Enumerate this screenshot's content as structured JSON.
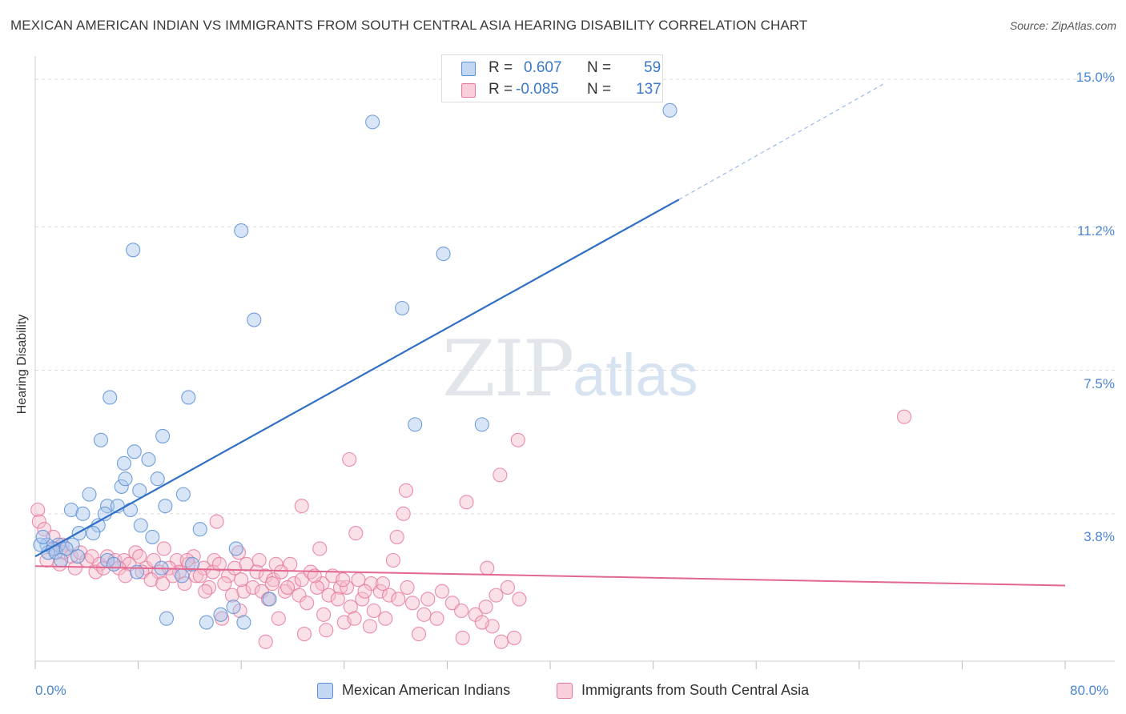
{
  "chart_data": {
    "type": "scatter",
    "title": "MEXICAN AMERICAN INDIAN VS IMMIGRANTS FROM SOUTH CENTRAL ASIA HEARING DISABILITY CORRELATION CHART",
    "source": "Source: ZipAtlas.com",
    "ylabel": "Hearing Disability",
    "xlabel": "",
    "xlim": [
      0,
      80
    ],
    "ylim": [
      0,
      15.6
    ],
    "x_tick_labels": [
      "0.0%",
      "80.0%"
    ],
    "y_ticks": [
      {
        "value": 3.8,
        "label": "3.8%"
      },
      {
        "value": 7.5,
        "label": "7.5%"
      },
      {
        "value": 11.2,
        "label": "11.2%"
      },
      {
        "value": 15.0,
        "label": "15.0%"
      }
    ],
    "watermark": {
      "zip": "ZIP",
      "atlas": "atlas"
    },
    "stats": [
      {
        "r_label": "R =",
        "r_value": "0.607",
        "n_label": "N =",
        "n_value": "59"
      },
      {
        "r_label": "R =",
        "r_value": "-0.085",
        "n_label": "N =",
        "n_value": "137"
      }
    ],
    "series": [
      {
        "name": "Mexican American Indians",
        "color": "#5b8fd6",
        "fill": "#a9c5ec",
        "trend": {
          "x0": 0,
          "y0": 2.7,
          "x1": 50,
          "y1": 11.9,
          "dash_x1": 66,
          "dash_y1": 14.9
        },
        "points": [
          [
            26.2,
            13.9
          ],
          [
            49.3,
            14.2
          ],
          [
            7.6,
            10.6
          ],
          [
            16.0,
            11.1
          ],
          [
            31.7,
            10.5
          ],
          [
            17.0,
            8.8
          ],
          [
            28.5,
            9.1
          ],
          [
            5.8,
            6.8
          ],
          [
            11.9,
            6.8
          ],
          [
            29.5,
            6.1
          ],
          [
            34.7,
            6.1
          ],
          [
            5.1,
            5.7
          ],
          [
            9.9,
            5.8
          ],
          [
            7.7,
            5.4
          ],
          [
            6.9,
            5.1
          ],
          [
            8.8,
            5.2
          ],
          [
            6.7,
            4.5
          ],
          [
            9.5,
            4.7
          ],
          [
            7.0,
            4.7
          ],
          [
            8.1,
            4.4
          ],
          [
            11.5,
            4.3
          ],
          [
            4.2,
            4.3
          ],
          [
            5.6,
            4.0
          ],
          [
            7.4,
            3.9
          ],
          [
            6.4,
            4.0
          ],
          [
            10.1,
            4.0
          ],
          [
            2.8,
            3.9
          ],
          [
            3.7,
            3.8
          ],
          [
            5.4,
            3.8
          ],
          [
            8.2,
            3.5
          ],
          [
            4.9,
            3.5
          ],
          [
            3.4,
            3.3
          ],
          [
            4.5,
            3.3
          ],
          [
            9.1,
            3.2
          ],
          [
            12.8,
            3.4
          ],
          [
            1.8,
            3.0
          ],
          [
            2.9,
            3.0
          ],
          [
            1.4,
            2.9
          ],
          [
            0.9,
            3.0
          ],
          [
            1.0,
            2.8
          ],
          [
            0.4,
            3.0
          ],
          [
            0.6,
            3.2
          ],
          [
            1.6,
            2.8
          ],
          [
            2.4,
            2.9
          ],
          [
            3.3,
            2.7
          ],
          [
            2.0,
            2.6
          ],
          [
            15.6,
            2.9
          ],
          [
            5.6,
            2.6
          ],
          [
            6.1,
            2.5
          ],
          [
            9.8,
            2.4
          ],
          [
            11.4,
            2.2
          ],
          [
            12.2,
            2.5
          ],
          [
            7.9,
            2.3
          ],
          [
            15.4,
            1.4
          ],
          [
            18.2,
            1.6
          ],
          [
            10.2,
            1.1
          ],
          [
            13.3,
            1.0
          ],
          [
            14.4,
            1.2
          ],
          [
            16.2,
            1.0
          ]
        ]
      },
      {
        "name": "Immigrants from South Central Asia",
        "color": "#e8799d",
        "fill": "#f5bccd",
        "trend": {
          "x0": 0,
          "y0": 2.45,
          "x1": 80,
          "y1": 1.95
        },
        "points": [
          [
            67.5,
            6.3
          ],
          [
            37.5,
            5.7
          ],
          [
            24.4,
            5.2
          ],
          [
            36.1,
            4.8
          ],
          [
            28.8,
            4.4
          ],
          [
            33.5,
            4.1
          ],
          [
            20.7,
            4.0
          ],
          [
            28.6,
            3.8
          ],
          [
            14.1,
            3.6
          ],
          [
            24.9,
            3.3
          ],
          [
            28.1,
            3.2
          ],
          [
            0.2,
            3.9
          ],
          [
            0.3,
            3.6
          ],
          [
            0.7,
            3.4
          ],
          [
            1.4,
            3.2
          ],
          [
            2.1,
            3.0
          ],
          [
            22.1,
            2.9
          ],
          [
            27.8,
            2.6
          ],
          [
            10.0,
            2.9
          ],
          [
            7.8,
            2.8
          ],
          [
            11.0,
            2.6
          ],
          [
            12.3,
            2.7
          ],
          [
            13.9,
            2.6
          ],
          [
            15.8,
            2.8
          ],
          [
            17.4,
            2.6
          ],
          [
            18.7,
            2.5
          ],
          [
            19.8,
            2.5
          ],
          [
            35.1,
            2.4
          ],
          [
            1.5,
            2.9
          ],
          [
            2.2,
            2.8
          ],
          [
            2.8,
            2.7
          ],
          [
            3.5,
            2.8
          ],
          [
            4.0,
            2.6
          ],
          [
            4.4,
            2.7
          ],
          [
            5.0,
            2.5
          ],
          [
            5.6,
            2.7
          ],
          [
            6.2,
            2.6
          ],
          [
            6.9,
            2.6
          ],
          [
            7.3,
            2.5
          ],
          [
            8.1,
            2.7
          ],
          [
            8.6,
            2.4
          ],
          [
            9.2,
            2.6
          ],
          [
            9.6,
            2.3
          ],
          [
            10.4,
            2.4
          ],
          [
            11.2,
            2.3
          ],
          [
            11.9,
            2.5
          ],
          [
            12.5,
            2.2
          ],
          [
            13.1,
            2.4
          ],
          [
            13.8,
            2.3
          ],
          [
            14.3,
            2.5
          ],
          [
            15.0,
            2.2
          ],
          [
            15.5,
            2.4
          ],
          [
            16.4,
            2.5
          ],
          [
            17.2,
            2.3
          ],
          [
            17.9,
            2.2
          ],
          [
            18.5,
            2.1
          ],
          [
            19.1,
            2.3
          ],
          [
            20.1,
            2.0
          ],
          [
            20.7,
            2.1
          ],
          [
            21.4,
            2.3
          ],
          [
            22.3,
            2.0
          ],
          [
            23.1,
            2.2
          ],
          [
            23.7,
            1.9
          ],
          [
            24.2,
            1.9
          ],
          [
            25.1,
            2.1
          ],
          [
            26.1,
            2.0
          ],
          [
            26.8,
            1.8
          ],
          [
            27.5,
            1.7
          ],
          [
            28.2,
            1.6
          ],
          [
            29.3,
            1.5
          ],
          [
            30.5,
            1.6
          ],
          [
            31.6,
            1.8
          ],
          [
            32.4,
            1.5
          ],
          [
            33.1,
            1.3
          ],
          [
            34.2,
            1.2
          ],
          [
            35.0,
            1.4
          ],
          [
            35.8,
            1.7
          ],
          [
            36.7,
            1.9
          ],
          [
            37.6,
            1.6
          ],
          [
            0.9,
            2.6
          ],
          [
            1.9,
            2.5
          ],
          [
            3.1,
            2.4
          ],
          [
            4.7,
            2.3
          ],
          [
            5.3,
            2.4
          ],
          [
            6.5,
            2.4
          ],
          [
            7.0,
            2.2
          ],
          [
            8.3,
            2.3
          ],
          [
            9.0,
            2.1
          ],
          [
            9.9,
            2.0
          ],
          [
            10.7,
            2.2
          ],
          [
            11.6,
            2.0
          ],
          [
            12.8,
            2.2
          ],
          [
            13.5,
            1.9
          ],
          [
            14.7,
            2.0
          ],
          [
            15.3,
            1.7
          ],
          [
            16.2,
            1.8
          ],
          [
            16.9,
            1.9
          ],
          [
            17.6,
            1.8
          ],
          [
            18.1,
            1.6
          ],
          [
            19.4,
            1.8
          ],
          [
            20.5,
            1.7
          ],
          [
            21.1,
            1.5
          ],
          [
            21.9,
            1.9
          ],
          [
            22.8,
            1.7
          ],
          [
            23.5,
            1.6
          ],
          [
            24.5,
            1.4
          ],
          [
            25.4,
            1.6
          ],
          [
            26.3,
            1.3
          ],
          [
            27.2,
            1.1
          ],
          [
            14.5,
            1.1
          ],
          [
            15.9,
            1.3
          ],
          [
            18.9,
            1.1
          ],
          [
            22.4,
            1.2
          ],
          [
            24.0,
            1.0
          ],
          [
            26.0,
            0.9
          ],
          [
            29.8,
            0.7
          ],
          [
            33.2,
            0.6
          ],
          [
            35.5,
            0.9
          ],
          [
            37.2,
            0.6
          ],
          [
            17.9,
            0.5
          ],
          [
            20.9,
            0.7
          ],
          [
            22.6,
            0.8
          ],
          [
            24.8,
            1.1
          ],
          [
            30.2,
            1.2
          ],
          [
            31.2,
            1.1
          ],
          [
            34.7,
            1.0
          ],
          [
            36.2,
            0.5
          ],
          [
            13.2,
            1.8
          ],
          [
            11.8,
            2.6
          ],
          [
            16.0,
            2.1
          ],
          [
            18.4,
            2.0
          ],
          [
            19.6,
            1.9
          ],
          [
            21.7,
            2.2
          ],
          [
            23.9,
            2.1
          ],
          [
            25.6,
            1.8
          ],
          [
            27.0,
            2.0
          ],
          [
            28.9,
            1.9
          ]
        ]
      }
    ]
  }
}
